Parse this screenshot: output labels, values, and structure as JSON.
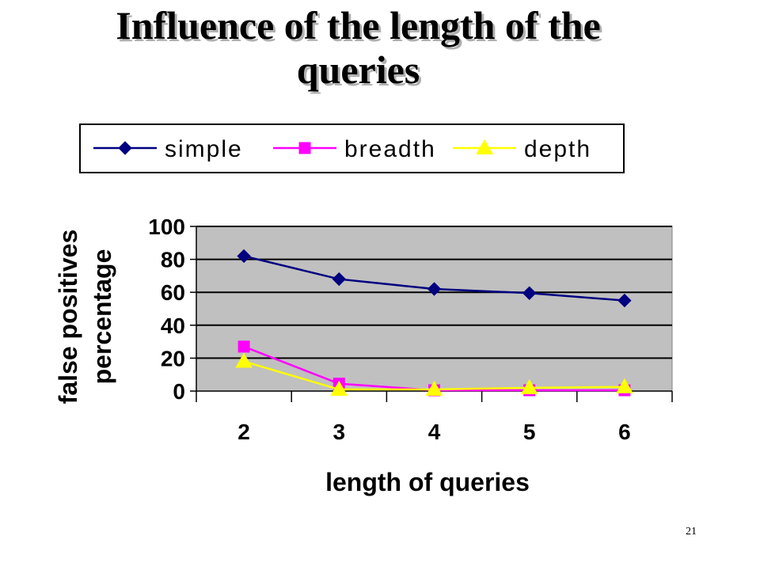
{
  "slide": {
    "title_line1": "Influence of the length of the",
    "title_line2": "queries",
    "page_number": "21"
  },
  "chart_data": {
    "type": "line",
    "x": [
      2,
      3,
      4,
      5,
      6
    ],
    "xlabel": "length of queries",
    "ylabel_line1": "false positives",
    "ylabel_line2": "percentage",
    "ylim": [
      0,
      100
    ],
    "yticks": [
      0,
      20,
      40,
      60,
      80,
      100
    ],
    "grid": true,
    "legend_position": "top",
    "plot_background": "#c0c0c0",
    "series": [
      {
        "name": "simple",
        "values": [
          82,
          68,
          62,
          59.5,
          55
        ],
        "color": "#000080",
        "marker": "diamond"
      },
      {
        "name": "breadth",
        "values": [
          27,
          4.5,
          0.5,
          0.5,
          0.5
        ],
        "color": "#ff00ff",
        "marker": "square"
      },
      {
        "name": "depth",
        "values": [
          18,
          1,
          1,
          2,
          2.5
        ],
        "color": "#ffff00",
        "marker": "triangle"
      }
    ]
  }
}
